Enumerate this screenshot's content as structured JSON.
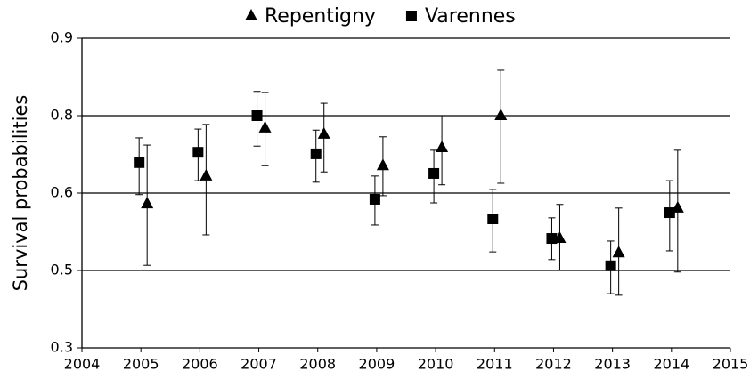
{
  "chart_data": {
    "type": "errorbar",
    "ylabel": "Survival probabilities",
    "x": [
      2005,
      2006,
      2007,
      2008,
      2009,
      2010,
      2011,
      2012,
      2013,
      2014
    ],
    "xlim": [
      2004,
      2015
    ],
    "xticks": [
      2004,
      2005,
      2006,
      2007,
      2008,
      2009,
      2010,
      2011,
      2012,
      2013,
      2014,
      2015
    ],
    "ylim": [
      0.3,
      0.9
    ],
    "yticks": [
      0.3,
      {
        "value": 0.45,
        "label": "0.5"
      },
      0.6,
      {
        "value": 0.75,
        "label": "0.8"
      },
      0.9
    ],
    "grid": true,
    "legend": "top",
    "series": [
      {
        "name": "Repentigny",
        "marker": "triangle",
        "color": "#000000",
        "values": [
          0.579,
          0.633,
          0.726,
          0.714,
          0.653,
          0.688,
          0.75,
          0.512,
          0.484,
          0.571
        ],
        "low": [
          0.46,
          0.519,
          0.653,
          0.641,
          0.595,
          0.616,
          0.619,
          0.45,
          0.402,
          0.447
        ],
        "high": [
          0.693,
          0.733,
          0.795,
          0.774,
          0.709,
          0.75,
          0.838,
          0.578,
          0.571,
          0.683
        ]
      },
      {
        "name": "Varennes",
        "marker": "square",
        "color": "#000000",
        "values": [
          0.659,
          0.679,
          0.75,
          0.676,
          0.588,
          0.638,
          0.55,
          0.512,
          0.459,
          0.562
        ],
        "low": [
          0.597,
          0.624,
          0.691,
          0.621,
          0.538,
          0.581,
          0.486,
          0.471,
          0.405,
          0.488
        ],
        "high": [
          0.707,
          0.724,
          0.797,
          0.722,
          0.633,
          0.683,
          0.607,
          0.552,
          0.507,
          0.624
        ]
      }
    ]
  }
}
